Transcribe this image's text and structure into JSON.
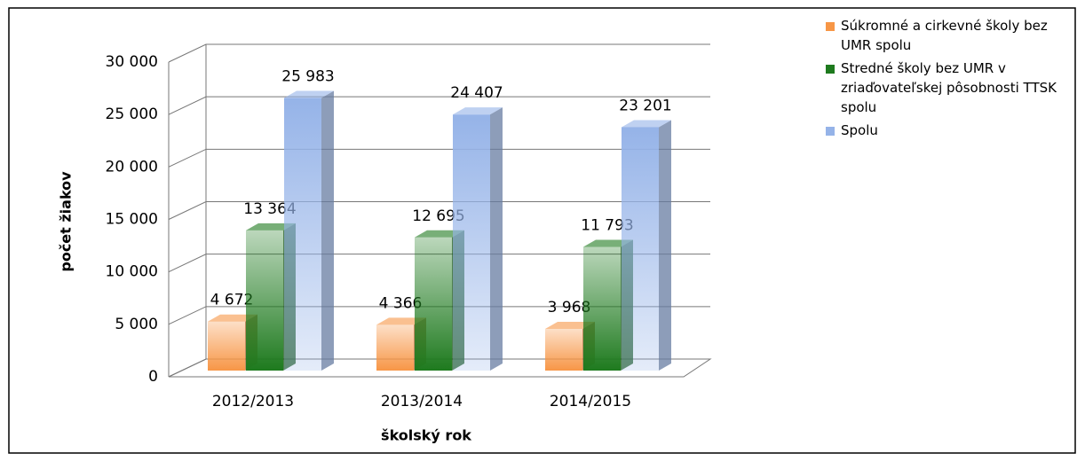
{
  "chart_data": {
    "type": "bar3d",
    "categories": [
      "2012/2013",
      "2013/2014",
      "2014/2015"
    ],
    "series": [
      {
        "name": "Súkromné a cirkevné školy bez UMR spolu",
        "color": "#f79646",
        "values": [
          4672,
          4366,
          3968
        ],
        "value_labels": [
          "4 672",
          "4 366",
          "3 968"
        ]
      },
      {
        "name": "Stredné školy bez UMR v zriaďovateľskej pôsobnosti TTSK spolu",
        "color": "#1e7a1e",
        "values": [
          13364,
          12695,
          11793
        ],
        "value_labels": [
          "13 364",
          "12 695",
          "11 793"
        ]
      },
      {
        "name": "Spolu",
        "color": "#95b3e8",
        "values": [
          25983,
          24407,
          23201
        ],
        "value_labels": [
          "25 983",
          "24 407",
          "23 201"
        ]
      }
    ],
    "ylim": [
      0,
      30000
    ],
    "yticks": [
      0,
      {
        "value": 5000,
        "label": "5 000"
      },
      {
        "value": 10000,
        "label": "10 000"
      },
      {
        "value": 15000,
        "label": "15 000"
      },
      {
        "value": 20000,
        "label": "20 000"
      },
      {
        "value": 25000,
        "label": "25 000"
      },
      {
        "value": 30000,
        "label": "30 000"
      }
    ],
    "xlabel": "školský rok",
    "ylabel": "počet žiakov",
    "grid": true,
    "legend": "right"
  }
}
